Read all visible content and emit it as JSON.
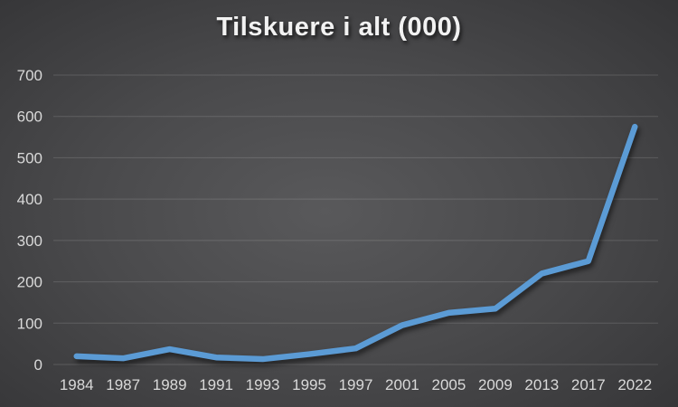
{
  "chart_data": {
    "type": "line",
    "title": "Tilskuere i alt (000)",
    "categories": [
      "1984",
      "1987",
      "1989",
      "1991",
      "1993",
      "1995",
      "1997",
      "2001",
      "2005",
      "2009",
      "2013",
      "2017",
      "2022"
    ],
    "series": [
      {
        "name": "Tilskuere i alt (000)",
        "values": [
          20,
          15,
          37,
          17,
          13,
          25,
          39,
          95,
          125,
          135,
          220,
          250,
          575
        ]
      }
    ],
    "xlabel": "",
    "ylabel": "",
    "ylim": [
      0,
      700
    ],
    "ytick_step": 100,
    "ytick_labels": [
      "0",
      "100",
      "200",
      "300",
      "400",
      "500",
      "600",
      "700"
    ],
    "grid": true,
    "legend_position": "none",
    "colors": {
      "line": "#5b9bd5",
      "background_center": "#59595b",
      "background_edge": "#242426",
      "gridline": "rgba(255,255,255,0.14)",
      "tick_label": "#d9d9d9",
      "title": "#f2f2f2"
    }
  }
}
